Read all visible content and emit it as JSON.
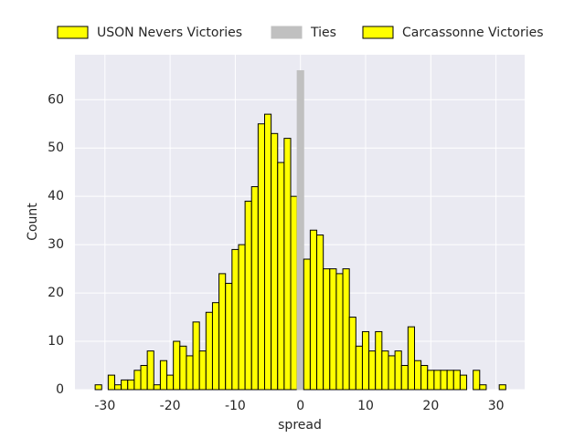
{
  "chart_data": {
    "type": "histogram",
    "xlabel": "spread",
    "ylabel": "Count",
    "xlim": [
      -34.6,
      34.4
    ],
    "ylim": [
      0,
      69.3
    ],
    "xticks": [
      -30,
      -20,
      -10,
      0,
      10,
      20,
      30
    ],
    "yticks": [
      0,
      10,
      20,
      30,
      40,
      50,
      60
    ],
    "grid": true,
    "legend": "top",
    "series": [
      {
        "name": "USON Nevers Victories",
        "color": "#ffff00",
        "edgecolor": "#000000",
        "bins": [
          -31.5,
          -30.5,
          -29.5,
          -28.5,
          -27.5,
          -26.5,
          -25.5,
          -24.5,
          -23.5,
          -22.5,
          -21.5,
          -20.5,
          -19.5,
          -18.5,
          -17.5,
          -16.5,
          -15.5,
          -14.5,
          -13.5,
          -12.5,
          -11.5,
          -10.5,
          -9.5,
          -8.5,
          -7.5,
          -6.5,
          -5.5,
          -4.5,
          -3.5,
          -2.5,
          -1.5,
          -0.5
        ],
        "values": [
          1,
          0,
          3,
          1,
          2,
          2,
          4,
          5,
          8,
          1,
          6,
          3,
          10,
          9,
          7,
          14,
          8,
          16,
          18,
          24,
          22,
          29,
          30,
          39,
          42,
          55,
          57,
          53,
          47,
          52,
          40
        ]
      },
      {
        "name": "Ties",
        "color": "#c0c0c0",
        "edgecolor": "#c0c0c0",
        "bins": [
          -0.5,
          0.5
        ],
        "values": [
          66
        ]
      },
      {
        "name": "Carcassonne Victories",
        "color": "#ffff00",
        "edgecolor": "#000000",
        "bins": [
          0.5,
          1.5,
          2.5,
          3.5,
          4.5,
          5.5,
          6.5,
          7.5,
          8.5,
          9.5,
          10.5,
          11.5,
          12.5,
          13.5,
          14.5,
          15.5,
          16.5,
          17.5,
          18.5,
          19.5,
          20.5,
          21.5,
          22.5,
          23.5,
          24.5,
          25.5,
          26.5,
          27.5,
          28.5,
          29.5,
          30.5,
          31.5
        ],
        "values": [
          27,
          33,
          32,
          25,
          25,
          24,
          25,
          15,
          9,
          12,
          8,
          12,
          8,
          7,
          8,
          5,
          13,
          6,
          5,
          4,
          4,
          4,
          4,
          4,
          3,
          0,
          4,
          1,
          0,
          0,
          1
        ]
      }
    ]
  }
}
